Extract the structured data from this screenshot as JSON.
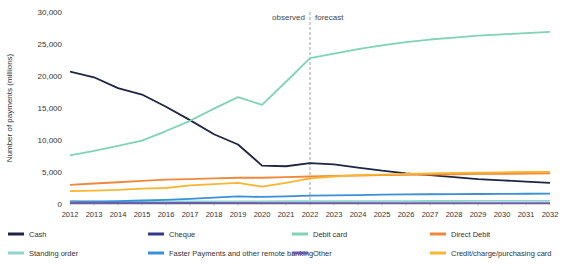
{
  "chart_data": {
    "type": "line",
    "y_label": "Number of payments (millions)",
    "annotations": {
      "x": 2022,
      "before": "observed",
      "after": "forecast"
    },
    "x": [
      2012,
      2013,
      2014,
      2015,
      2016,
      2017,
      2018,
      2019,
      2020,
      2021,
      2022,
      2023,
      2024,
      2025,
      2026,
      2027,
      2028,
      2029,
      2030,
      2031,
      2032
    ],
    "xlim": [
      2012,
      2032
    ],
    "xticks": [
      2012,
      2013,
      2014,
      2015,
      2016,
      2017,
      2018,
      2019,
      2020,
      2021,
      2022,
      2023,
      2024,
      2025,
      2026,
      2027,
      2028,
      2029,
      2030,
      2031,
      2032
    ],
    "ylim": [
      0,
      30000
    ],
    "yticks": [
      0,
      {
        "value": 5000,
        "label": "5,000"
      },
      {
        "value": 10000,
        "label": "10,000"
      },
      {
        "value": 15000,
        "label": "15,000"
      },
      {
        "value": 20000,
        "label": "20,000"
      },
      {
        "value": 25000,
        "label": "25,000"
      },
      {
        "value": 30000,
        "label": "30,000"
      }
    ],
    "grid": false,
    "legend": "bottom",
    "series": [
      {
        "name": "Cash",
        "color": "#1c2541",
        "values": [
          20700,
          19800,
          18100,
          17100,
          15200,
          13100,
          10900,
          9300,
          6000,
          5900,
          6400,
          6200,
          5700,
          5200,
          4800,
          4500,
          4200,
          3900,
          3700,
          3500,
          3300
        ]
      },
      {
        "name": "Cheque",
        "color": "#2e3a87",
        "values": [
          400,
          350,
          300,
          250,
          200,
          170,
          140,
          110,
          70,
          60,
          50,
          45,
          40,
          35,
          30,
          28,
          25,
          22,
          20,
          18,
          15
        ]
      },
      {
        "name": "Debit card",
        "color": "#7fd3b6",
        "values": [
          7600,
          8300,
          9100,
          9900,
          11400,
          13000,
          14900,
          16700,
          15500,
          19100,
          22800,
          23500,
          24200,
          24800,
          25300,
          25700,
          26000,
          26300,
          26500,
          26700,
          26900
        ]
      },
      {
        "name": "Direct Debit",
        "color": "#f0883a",
        "values": [
          3000,
          3200,
          3400,
          3600,
          3800,
          3900,
          4000,
          4100,
          4100,
          4200,
          4300,
          4400,
          4450,
          4500,
          4550,
          4600,
          4650,
          4700,
          4700,
          4750,
          4800
        ]
      },
      {
        "name": "Standing order",
        "color": "#93d3d0",
        "values": [
          350,
          360,
          370,
          380,
          390,
          400,
          410,
          420,
          420,
          430,
          440,
          445,
          450,
          455,
          460,
          465,
          470,
          475,
          480,
          485,
          490
        ]
      },
      {
        "name": "Faster Payments and other remote banking",
        "color": "#3a8fd8",
        "values": [
          300,
          350,
          450,
          550,
          650,
          800,
          1000,
          1200,
          1100,
          1200,
          1300,
          1350,
          1400,
          1450,
          1500,
          1520,
          1540,
          1560,
          1580,
          1600,
          1620
        ]
      },
      {
        "name": "Other",
        "color": "#6a5aa8",
        "values": [
          150,
          150,
          150,
          150,
          150,
          150,
          150,
          150,
          150,
          150,
          150,
          150,
          150,
          150,
          150,
          150,
          150,
          150,
          150,
          150,
          150
        ]
      },
      {
        "name": "Credit/charge/purchasing card",
        "color": "#f8b631",
        "values": [
          2000,
          2100,
          2200,
          2400,
          2500,
          2900,
          3100,
          3300,
          2700,
          3300,
          4000,
          4300,
          4500,
          4600,
          4700,
          4800,
          4850,
          4900,
          4950,
          5000,
          5000
        ]
      }
    ]
  }
}
